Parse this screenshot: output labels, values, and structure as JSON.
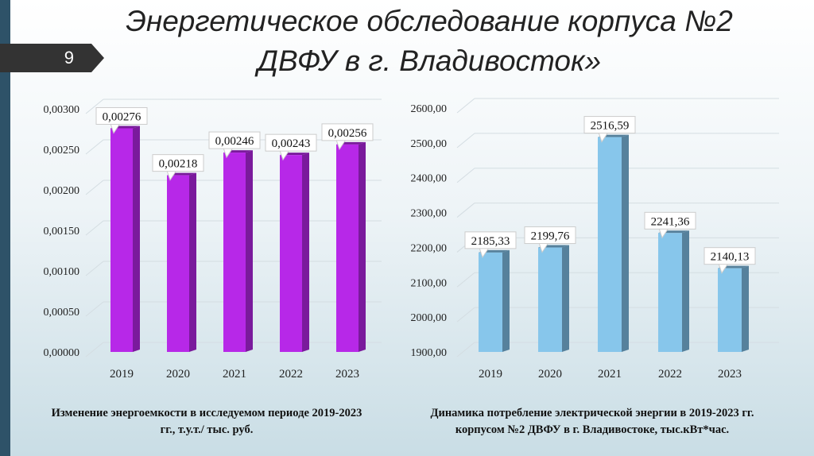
{
  "slide": {
    "page_number": "9",
    "title_line1": "Энергетическое обследование корпуса №2",
    "title_line2": "ДВФУ в г. Владивосток»"
  },
  "chart_data": [
    {
      "type": "bar",
      "categories": [
        "2019",
        "2020",
        "2021",
        "2022",
        "2023"
      ],
      "values": [
        0.00276,
        0.00218,
        0.00246,
        0.00243,
        0.00256
      ],
      "value_labels": [
        "0,00276",
        "0,00218",
        "0,00246",
        "0,00243",
        "0,00256"
      ],
      "yticks": [
        "0,00000",
        "0,00050",
        "0,00100",
        "0,00150",
        "0,00200",
        "0,00250",
        "0,00300"
      ],
      "ylim": [
        0,
        0.003
      ],
      "grid": true,
      "color": "#b728e8",
      "side_color": "#7a1a9c",
      "caption_line1": "Изменение энергоемкости в исследуемом периоде 2019-2023",
      "caption_line2": "гг., т.у.т./ тыс. руб."
    },
    {
      "type": "bar",
      "categories": [
        "2019",
        "2020",
        "2021",
        "2022",
        "2023"
      ],
      "values": [
        2185.33,
        2199.76,
        2516.59,
        2241.36,
        2140.13
      ],
      "value_labels": [
        "2185,33",
        "2199,76",
        "2516,59",
        "2241,36",
        "2140,13"
      ],
      "yticks": [
        "1900,00",
        "2000,00",
        "2100,00",
        "2200,00",
        "2300,00",
        "2400,00",
        "2500,00",
        "2600,00"
      ],
      "ylim": [
        1900,
        2600
      ],
      "grid": true,
      "color": "#87c6eb",
      "side_color": "#56819c",
      "caption_line1": "Динамика потребление электрической энергии в 2019-2023 гг.",
      "caption_line2": "корпусом №2 ДВФУ в г. Владивостоке, тыс.кВт*час."
    }
  ]
}
